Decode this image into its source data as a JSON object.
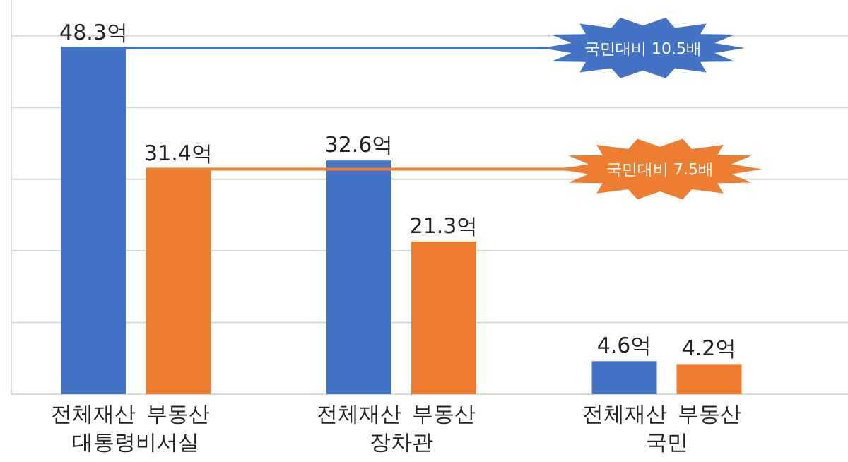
{
  "chart_data": {
    "type": "bar",
    "categories": [
      "대통령비서실",
      "장차관",
      "국민"
    ],
    "series": [
      {
        "name": "전체재산",
        "color": "#4472c4",
        "values": [
          48.3,
          32.6,
          4.6
        ],
        "value_labels": [
          "48.3억",
          "32.6억",
          "4.6억"
        ]
      },
      {
        "name": "부동산",
        "color": "#ed7d31",
        "values": [
          31.4,
          21.3,
          4.2
        ],
        "value_labels": [
          "31.4억",
          "21.3억",
          "4.2억"
        ]
      }
    ],
    "ylim": [
      0,
      55
    ],
    "yticks": [
      {
        "value": 0,
        "label": null
      },
      {
        "value": 10,
        "label": null
      },
      {
        "value": 20,
        "label": null
      },
      {
        "value": 30,
        "label": null
      },
      {
        "value": 40,
        "label": null
      },
      {
        "value": 50,
        "label": null
      }
    ],
    "grid": "y",
    "tick_labels": "x",
    "ref_lines": [
      {
        "axis": "y",
        "value": 48.3,
        "label": "국민대비 10.5배",
        "color": "#4472c4"
      },
      {
        "axis": "y",
        "value": 31.4,
        "label": "국민대비 7.5배",
        "color": "#ed7d31"
      }
    ]
  }
}
